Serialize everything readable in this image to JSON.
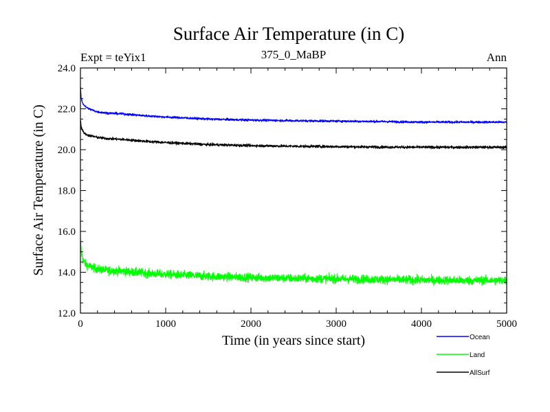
{
  "chart_data": {
    "type": "line",
    "title": "Surface Air Temperature (in C)",
    "subtitle_left": "Expt = teYix1",
    "subtitle_center": "375_0_MaBP",
    "subtitle_right": "Ann",
    "xlabel": "Time (in years since start)",
    "ylabel": "Surface Air Temperature (in C)",
    "xlim": [
      0,
      5000
    ],
    "ylim": [
      12.0,
      24.0
    ],
    "x_ticks": [
      0,
      1000,
      2000,
      3000,
      4000,
      5000
    ],
    "x_tick_labels": [
      "0",
      "1000",
      "2000",
      "3000",
      "4000",
      "5000"
    ],
    "y_ticks": [
      12.0,
      14.0,
      16.0,
      18.0,
      20.0,
      22.0,
      24.0
    ],
    "y_tick_labels": [
      "12.0",
      "14.0",
      "16.0",
      "18.0",
      "20.0",
      "22.0",
      "24.0"
    ],
    "grid": false,
    "legend_position": "bottom-right",
    "series": [
      {
        "name": "Ocean",
        "color": "#0000ff",
        "noise": 0.06,
        "x": [
          0,
          10,
          30,
          60,
          100,
          200,
          300,
          500,
          800,
          1000,
          1500,
          2000,
          2500,
          3000,
          3500,
          4000,
          4500,
          5000
        ],
        "values": [
          23.1,
          22.5,
          22.25,
          22.1,
          22.0,
          21.85,
          21.8,
          21.75,
          21.65,
          21.6,
          21.5,
          21.45,
          21.42,
          21.4,
          21.38,
          21.35,
          21.35,
          21.35
        ]
      },
      {
        "name": "Land",
        "color": "#00ff00",
        "noise": 0.22,
        "x": [
          0,
          10,
          30,
          60,
          100,
          200,
          300,
          500,
          800,
          1000,
          1500,
          2000,
          2500,
          3000,
          3500,
          4000,
          4500,
          5000
        ],
        "values": [
          15.6,
          15.0,
          14.6,
          14.4,
          14.3,
          14.15,
          14.1,
          14.05,
          13.95,
          13.9,
          13.8,
          13.75,
          13.7,
          13.68,
          13.65,
          13.62,
          13.6,
          13.6
        ]
      },
      {
        "name": "AllSurf",
        "color": "#000000",
        "noise": 0.07,
        "x": [
          0,
          10,
          30,
          60,
          100,
          200,
          300,
          500,
          800,
          1000,
          1500,
          2000,
          2500,
          3000,
          3500,
          4000,
          4500,
          5000
        ],
        "values": [
          21.5,
          21.1,
          20.9,
          20.75,
          20.7,
          20.6,
          20.55,
          20.5,
          20.4,
          20.35,
          20.25,
          20.2,
          20.17,
          20.15,
          20.13,
          20.12,
          20.12,
          20.12
        ]
      }
    ]
  }
}
